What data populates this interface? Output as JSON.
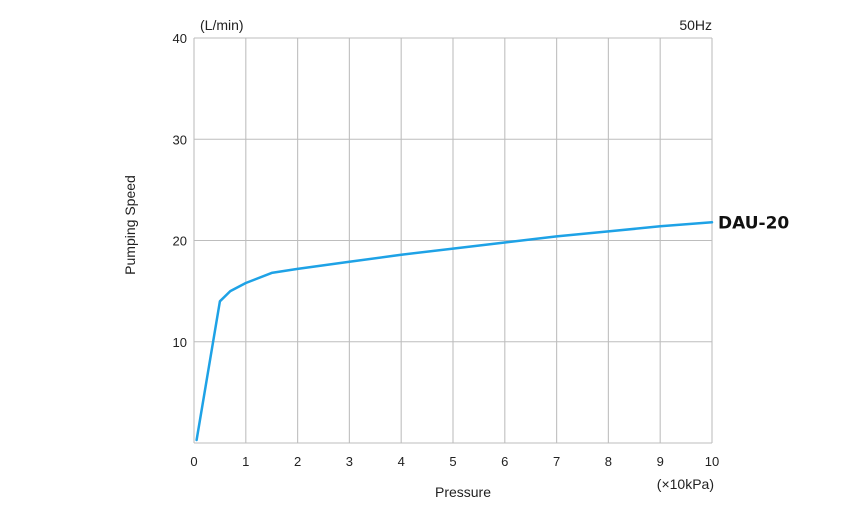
{
  "chart_data": {
    "type": "line",
    "xlabel": "Pressure",
    "x_unit": "(×10kPa)",
    "ylabel": "Pumping Speed",
    "y_unit": "(L/min)",
    "annotation": "50Hz",
    "xlim": [
      0,
      10
    ],
    "ylim": [
      0,
      40
    ],
    "x_ticks": [
      "0",
      "1",
      "2",
      "3",
      "4",
      "5",
      "6",
      "7",
      "8",
      "9",
      "10"
    ],
    "y_ticks": [
      "10",
      "20",
      "30",
      "40"
    ],
    "grid": true,
    "series": [
      {
        "name": "DAU-20",
        "color": "#1ea2e6",
        "x": [
          0.05,
          0.5,
          0.7,
          1.0,
          1.5,
          2,
          3,
          4,
          5,
          6,
          7,
          8,
          9,
          10
        ],
        "y": [
          0.3,
          14.0,
          15.0,
          15.8,
          16.8,
          17.2,
          17.9,
          18.6,
          19.2,
          19.8,
          20.4,
          20.9,
          21.4,
          21.8
        ]
      }
    ]
  }
}
